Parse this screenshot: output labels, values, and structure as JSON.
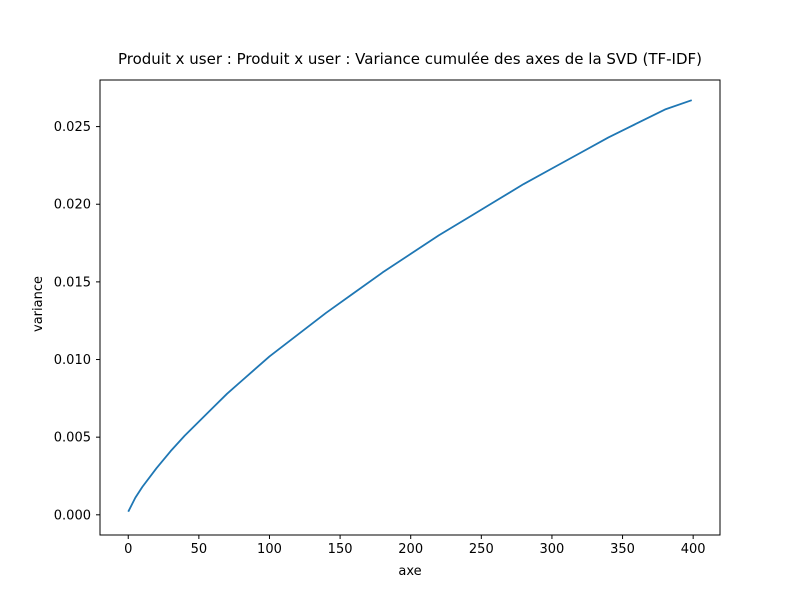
{
  "chart_data": {
    "type": "line",
    "title": "Produit x user : Produit x user : Variance cumulée des axes de la SVD (TF-IDF)",
    "xlabel": "axe",
    "ylabel": "variance",
    "xlim": [
      -20,
      419
    ],
    "ylim": [
      -0.0013,
      0.028
    ],
    "xticks": [
      0,
      50,
      100,
      150,
      200,
      250,
      300,
      350,
      400
    ],
    "xtick_labels": [
      "0",
      "50",
      "100",
      "150",
      "200",
      "250",
      "300",
      "350",
      "400"
    ],
    "yticks": [
      0.0,
      0.005,
      0.01,
      0.015,
      0.02,
      0.025
    ],
    "ytick_labels": [
      "0.000",
      "0.005",
      "0.010",
      "0.015",
      "0.020",
      "0.025"
    ],
    "grid": false,
    "series": [
      {
        "color": "#1f77b4",
        "x": [
          0,
          5,
          10,
          20,
          30,
          40,
          50,
          60,
          70,
          80,
          90,
          100,
          120,
          140,
          160,
          180,
          200,
          220,
          240,
          260,
          280,
          300,
          320,
          340,
          360,
          380,
          399
        ],
        "y": [
          0.0002,
          0.0011,
          0.0018,
          0.003,
          0.0041,
          0.0051,
          0.006,
          0.0069,
          0.0078,
          0.0086,
          0.0094,
          0.0102,
          0.0116,
          0.013,
          0.0143,
          0.0156,
          0.0168,
          0.018,
          0.0191,
          0.0202,
          0.0213,
          0.0223,
          0.0233,
          0.0243,
          0.0252,
          0.0261,
          0.0267
        ]
      }
    ]
  }
}
